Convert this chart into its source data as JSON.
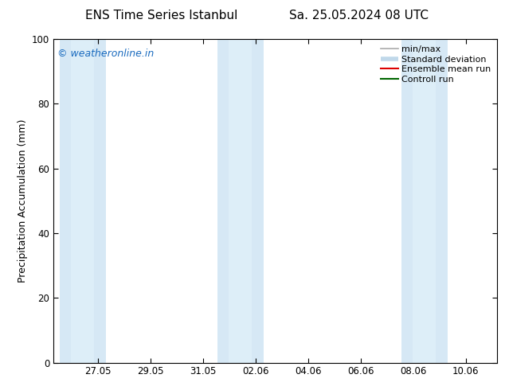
{
  "title_left": "ENS Time Series Istanbul",
  "title_right": "Sa. 25.05.2024 08 UTC",
  "ylabel": "Precipitation Accumulation (mm)",
  "ylim": [
    0,
    100
  ],
  "yticks": [
    0,
    20,
    40,
    60,
    80,
    100
  ],
  "background_color": "#ffffff",
  "watermark": "© weatheronline.in",
  "watermark_color": "#1a6bbf",
  "band_color": "#d6e8f5",
  "band_color_inner": "#ddeef8",
  "line_color_ensemble": "#dd0000",
  "line_color_control": "#006600",
  "legend_minmax_color": "#aaaaaa",
  "legend_std_color": "#c0d8ea",
  "bands": [
    {
      "x_start": 25.55,
      "x_end": 27.3
    },
    {
      "x_start": 31.55,
      "x_end": 33.3
    },
    {
      "x_start": 38.55,
      "x_end": 40.3
    }
  ],
  "xtick_labels": [
    "27.05",
    "29.05",
    "31.05",
    "02.06",
    "04.06",
    "06.06",
    "08.06",
    "10.06"
  ],
  "xtick_positions": [
    27,
    29,
    31,
    33,
    35,
    37,
    39,
    41
  ],
  "xlim": [
    25.3,
    42.2
  ],
  "title_fontsize": 11,
  "legend_fontsize": 8,
  "tick_fontsize": 8.5,
  "ylabel_fontsize": 9
}
